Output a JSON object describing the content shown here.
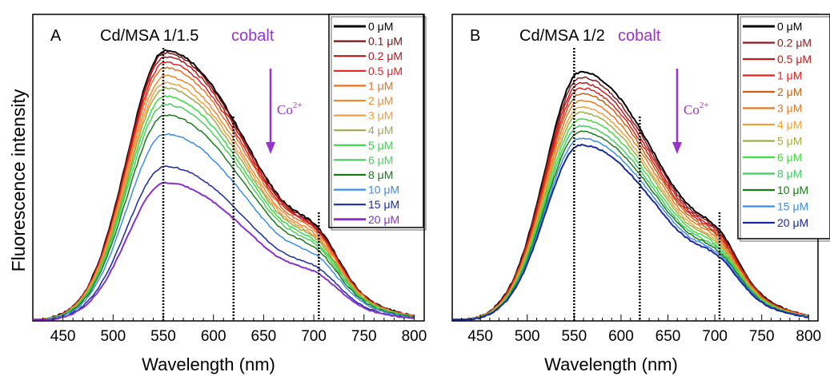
{
  "shared": {
    "ylabel": "Fluorescence intensity"
  },
  "chart_data": [
    {
      "type": "line",
      "panel_letter": "A",
      "title": "Cd/MSA 1/1.5",
      "title_suffix": "cobalt",
      "title_suffix_color": "#9933cc",
      "annotation": {
        "base": "Co",
        "sup": "2+",
        "direction": "down",
        "color": "#9933cc"
      },
      "xlabel": "Wavelength (nm)",
      "ylabel": "Fluorescence intensity",
      "xlim": [
        420,
        810
      ],
      "ylim": [
        0,
        1.0
      ],
      "xticks": [
        450,
        500,
        550,
        600,
        650,
        700,
        750,
        800
      ],
      "y_ticks_shown": false,
      "vlines": [
        550,
        620,
        705
      ],
      "legend_position": "top-right",
      "peak_nm": 552,
      "series": [
        {
          "name": "0 μM",
          "color": "#000000",
          "peak": 1.0
        },
        {
          "name": "0.1 μM",
          "color": "#7a1010",
          "peak": 0.99
        },
        {
          "name": "0.2 μM",
          "color": "#b01818",
          "peak": 0.975
        },
        {
          "name": "0.5 μM",
          "color": "#e02020",
          "peak": 0.955
        },
        {
          "name": "1 μM",
          "color": "#e87020",
          "peak": 0.935
        },
        {
          "name": "2 μM",
          "color": "#f08a30",
          "peak": 0.905
        },
        {
          "name": "3 μM",
          "color": "#f0a040",
          "peak": 0.88
        },
        {
          "name": "4 μM",
          "color": "#a0a848",
          "peak": 0.86
        },
        {
          "name": "5 μM",
          "color": "#30dd40",
          "peak": 0.83
        },
        {
          "name": "6 μM",
          "color": "#50cc60",
          "peak": 0.8
        },
        {
          "name": "8 μM",
          "color": "#1a7a1a",
          "peak": 0.76
        },
        {
          "name": "10 μM",
          "color": "#3b8de8",
          "peak": 0.69
        },
        {
          "name": "15 μM",
          "color": "#1a2aa0",
          "peak": 0.57
        },
        {
          "name": "20 μM",
          "color": "#8a30c8",
          "peak": 0.51
        }
      ]
    },
    {
      "type": "line",
      "panel_letter": "B",
      "title": "Cd/MSA 1/2",
      "title_suffix": "cobalt",
      "title_suffix_color": "#9933cc",
      "annotation": {
        "base": "Co",
        "sup": "2+",
        "direction": "down",
        "color": "#9933cc"
      },
      "xlabel": "Wavelength (nm)",
      "ylabel": "",
      "xlim": [
        420,
        810
      ],
      "ylim": [
        0,
        1.0
      ],
      "xticks": [
        450,
        500,
        550,
        600,
        650,
        700,
        750,
        800
      ],
      "y_ticks_shown": false,
      "vlines": [
        550,
        620,
        705
      ],
      "legend_position": "top-right",
      "peak_nm": 557,
      "series": [
        {
          "name": "0 μM",
          "color": "#000000",
          "peak": 0.92
        },
        {
          "name": "0.2 μM",
          "color": "#8a1a1a",
          "peak": 0.9
        },
        {
          "name": "0.5 μM",
          "color": "#c01a1a",
          "peak": 0.88
        },
        {
          "name": "1 μM",
          "color": "#e02020",
          "peak": 0.86
        },
        {
          "name": "2 μM",
          "color": "#c86010",
          "peak": 0.84
        },
        {
          "name": "3 μM",
          "color": "#e87820",
          "peak": 0.815
        },
        {
          "name": "4 μM",
          "color": "#f0a040",
          "peak": 0.79
        },
        {
          "name": "5 μM",
          "color": "#a0b040",
          "peak": 0.77
        },
        {
          "name": "6 μM",
          "color": "#40dd40",
          "peak": 0.745
        },
        {
          "name": "8 μM",
          "color": "#40cc60",
          "peak": 0.72
        },
        {
          "name": "10 μM",
          "color": "#1a7a1a",
          "peak": 0.7
        },
        {
          "name": "15 μM",
          "color": "#3b8de8",
          "peak": 0.675
        },
        {
          "name": "20 μM",
          "color": "#1a2aa0",
          "peak": 0.65
        }
      ]
    }
  ]
}
